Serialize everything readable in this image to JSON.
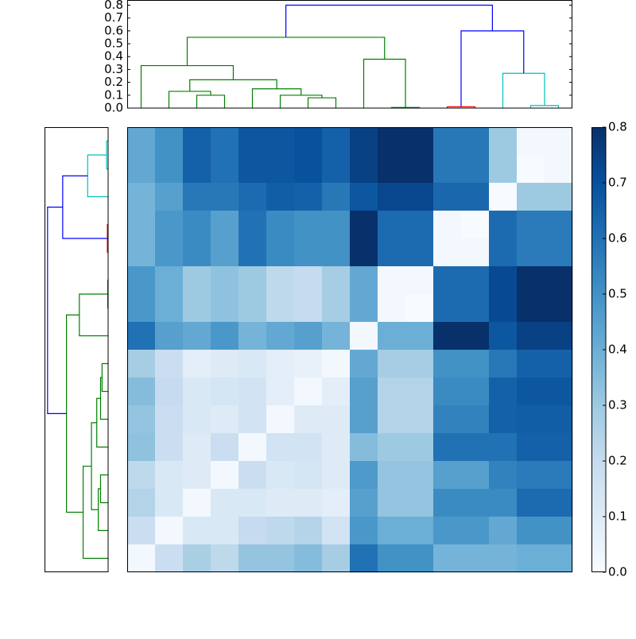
{
  "chart_data": {
    "type": "clustermap",
    "colormap": "Blues",
    "clim": [
      0,
      0.8
    ],
    "z": [
      [
        0.42,
        0.5,
        0.65,
        0.6,
        0.68,
        0.68,
        0.7,
        0.65,
        0.75,
        0.8,
        0.8,
        0.58,
        0.58,
        0.3,
        0.02,
        0.02
      ],
      [
        0.42,
        0.5,
        0.65,
        0.6,
        0.68,
        0.68,
        0.7,
        0.65,
        0.75,
        0.8,
        0.8,
        0.58,
        0.58,
        0.3,
        0.0,
        0.02
      ],
      [
        0.38,
        0.45,
        0.58,
        0.58,
        0.62,
        0.66,
        0.65,
        0.58,
        0.68,
        0.73,
        0.73,
        0.63,
        0.63,
        0.0,
        0.3,
        0.3
      ],
      [
        0.38,
        0.48,
        0.52,
        0.45,
        0.6,
        0.52,
        0.5,
        0.5,
        0.8,
        0.62,
        0.62,
        0.02,
        0.0,
        0.62,
        0.57,
        0.57
      ],
      [
        0.38,
        0.48,
        0.52,
        0.45,
        0.6,
        0.52,
        0.5,
        0.5,
        0.8,
        0.62,
        0.62,
        0.02,
        0.02,
        0.62,
        0.57,
        0.57
      ],
      [
        0.48,
        0.4,
        0.3,
        0.33,
        0.3,
        0.22,
        0.2,
        0.28,
        0.42,
        0.02,
        0.02,
        0.62,
        0.62,
        0.72,
        0.8,
        0.8
      ],
      [
        0.48,
        0.4,
        0.3,
        0.33,
        0.3,
        0.22,
        0.2,
        0.28,
        0.42,
        0.02,
        0.0,
        0.62,
        0.62,
        0.72,
        0.8,
        0.8
      ],
      [
        0.6,
        0.45,
        0.42,
        0.48,
        0.38,
        0.42,
        0.45,
        0.38,
        0.02,
        0.4,
        0.4,
        0.8,
        0.8,
        0.68,
        0.75,
        0.75
      ],
      [
        0.28,
        0.18,
        0.08,
        0.1,
        0.12,
        0.08,
        0.06,
        0.02,
        0.42,
        0.28,
        0.28,
        0.5,
        0.5,
        0.58,
        0.65,
        0.65
      ],
      [
        0.35,
        0.2,
        0.12,
        0.14,
        0.15,
        0.08,
        0.02,
        0.08,
        0.45,
        0.25,
        0.25,
        0.52,
        0.52,
        0.65,
        0.68,
        0.68
      ],
      [
        0.32,
        0.18,
        0.12,
        0.1,
        0.15,
        0.02,
        0.1,
        0.1,
        0.45,
        0.25,
        0.25,
        0.55,
        0.55,
        0.65,
        0.66,
        0.66
      ],
      [
        0.33,
        0.18,
        0.1,
        0.18,
        0.02,
        0.15,
        0.15,
        0.1,
        0.35,
        0.3,
        0.3,
        0.6,
        0.6,
        0.6,
        0.65,
        0.65
      ],
      [
        0.22,
        0.12,
        0.1,
        0.02,
        0.18,
        0.12,
        0.14,
        0.1,
        0.47,
        0.32,
        0.32,
        0.45,
        0.45,
        0.55,
        0.57,
        0.57
      ],
      [
        0.25,
        0.12,
        0.02,
        0.12,
        0.12,
        0.1,
        0.1,
        0.08,
        0.45,
        0.32,
        0.32,
        0.52,
        0.52,
        0.52,
        0.62,
        0.62
      ],
      [
        0.18,
        0.02,
        0.12,
        0.12,
        0.2,
        0.22,
        0.24,
        0.15,
        0.48,
        0.4,
        0.4,
        0.48,
        0.48,
        0.42,
        0.5,
        0.5
      ],
      [
        0.02,
        0.18,
        0.27,
        0.22,
        0.32,
        0.32,
        0.35,
        0.28,
        0.6,
        0.5,
        0.5,
        0.38,
        0.38,
        0.38,
        0.4,
        0.4
      ]
    ],
    "top_dendrogram": {
      "xlim": [
        0,
        160
      ],
      "ylim": [
        0,
        0.84
      ],
      "yticks": [
        {
          "value": 0,
          "label": "0.0"
        },
        0.1,
        0.2,
        0.3,
        0.4,
        0.5,
        0.6,
        0.7,
        0.8
      ],
      "links": [
        {
          "icoord": [
            25,
            25,
            35,
            35
          ],
          "dcoord": [
            0,
            0.1,
            0.1,
            0
          ],
          "color": "#008000"
        },
        {
          "icoord": [
            15,
            15,
            30,
            30
          ],
          "dcoord": [
            0,
            0.13,
            0.13,
            0.1
          ],
          "color": "#008000"
        },
        {
          "icoord": [
            65,
            65,
            75,
            75
          ],
          "dcoord": [
            0,
            0.08,
            0.08,
            0
          ],
          "color": "#008000"
        },
        {
          "icoord": [
            55,
            55,
            70,
            70
          ],
          "dcoord": [
            0,
            0.1,
            0.1,
            0.08
          ],
          "color": "#008000"
        },
        {
          "icoord": [
            45,
            45,
            62.5,
            62.5
          ],
          "dcoord": [
            0,
            0.15,
            0.15,
            0.1
          ],
          "color": "#008000"
        },
        {
          "icoord": [
            22.5,
            22.5,
            53.75,
            53.75
          ],
          "dcoord": [
            0.13,
            0.22,
            0.22,
            0.15
          ],
          "color": "#008000"
        },
        {
          "icoord": [
            5,
            5,
            38.125,
            38.125
          ],
          "dcoord": [
            0,
            0.33,
            0.33,
            0.22
          ],
          "color": "#008000"
        },
        {
          "icoord": [
            95,
            95,
            105,
            105
          ],
          "dcoord": [
            0,
            0.005,
            0.005,
            0
          ],
          "color": "#008000"
        },
        {
          "icoord": [
            85,
            85,
            100,
            100
          ],
          "dcoord": [
            0,
            0.38,
            0.38,
            0.005
          ],
          "color": "#008000"
        },
        {
          "icoord": [
            21.5625,
            21.5625,
            92.5,
            92.5
          ],
          "dcoord": [
            0.33,
            0.55,
            0.55,
            0.38
          ],
          "color": "#008000"
        },
        {
          "icoord": [
            115,
            115,
            125,
            125
          ],
          "dcoord": [
            0,
            0.01,
            0.01,
            0
          ],
          "color": "#ff0000"
        },
        {
          "icoord": [
            145,
            145,
            155,
            155
          ],
          "dcoord": [
            0,
            0.02,
            0.02,
            0
          ],
          "color": "#00bfbf"
        },
        {
          "icoord": [
            135,
            135,
            150,
            150
          ],
          "dcoord": [
            0,
            0.27,
            0.27,
            0.02
          ],
          "color": "#00bfbf"
        },
        {
          "icoord": [
            120,
            120,
            142.5,
            142.5
          ],
          "dcoord": [
            0.01,
            0.6,
            0.6,
            0.27
          ],
          "color": "#0000ff"
        },
        {
          "icoord": [
            57.03,
            57.03,
            131.25,
            131.25
          ],
          "dcoord": [
            0.55,
            0.8,
            0.8,
            0.6
          ],
          "color": "#0000ff"
        }
      ]
    },
    "left_dendrogram": {
      "ylim": [
        0,
        160
      ],
      "xlim": [
        0.84,
        0
      ],
      "links": [
        {
          "icoord": [
            135,
            135,
            125,
            125
          ],
          "dcoord": [
            0,
            0.1,
            0.1,
            0
          ],
          "color": "#008000"
        },
        {
          "icoord": [
            145,
            145,
            130,
            130
          ],
          "dcoord": [
            0,
            0.13,
            0.13,
            0.1
          ],
          "color": "#008000"
        },
        {
          "icoord": [
            95,
            95,
            85,
            85
          ],
          "dcoord": [
            0,
            0.08,
            0.08,
            0
          ],
          "color": "#008000"
        },
        {
          "icoord": [
            105,
            105,
            90,
            90
          ],
          "dcoord": [
            0,
            0.1,
            0.1,
            0.08
          ],
          "color": "#008000"
        },
        {
          "icoord": [
            115,
            115,
            97.5,
            97.5
          ],
          "dcoord": [
            0,
            0.15,
            0.15,
            0.1
          ],
          "color": "#008000"
        },
        {
          "icoord": [
            137.5,
            137.5,
            106.25,
            106.25
          ],
          "dcoord": [
            0.13,
            0.22,
            0.22,
            0.15
          ],
          "color": "#008000"
        },
        {
          "icoord": [
            155,
            155,
            121.875,
            121.875
          ],
          "dcoord": [
            0,
            0.33,
            0.33,
            0.22
          ],
          "color": "#008000"
        },
        {
          "icoord": [
            65,
            65,
            55,
            55
          ],
          "dcoord": [
            0,
            0.005,
            0.005,
            0
          ],
          "color": "#008000"
        },
        {
          "icoord": [
            75,
            75,
            60,
            60
          ],
          "dcoord": [
            0,
            0.38,
            0.38,
            0.005
          ],
          "color": "#008000"
        },
        {
          "icoord": [
            138.4375,
            138.4375,
            67.5,
            67.5
          ],
          "dcoord": [
            0.33,
            0.55,
            0.55,
            0.38
          ],
          "color": "#008000"
        },
        {
          "icoord": [
            45,
            45,
            35,
            35
          ],
          "dcoord": [
            0,
            0.01,
            0.01,
            0
          ],
          "color": "#ff0000"
        },
        {
          "icoord": [
            15,
            15,
            5,
            5
          ],
          "dcoord": [
            0,
            0.02,
            0.02,
            0
          ],
          "color": "#00bfbf"
        },
        {
          "icoord": [
            25,
            25,
            10,
            10
          ],
          "dcoord": [
            0,
            0.27,
            0.27,
            0.02
          ],
          "color": "#00bfbf"
        },
        {
          "icoord": [
            40,
            40,
            17.5,
            17.5
          ],
          "dcoord": [
            0.01,
            0.6,
            0.6,
            0.27
          ],
          "color": "#0000ff"
        },
        {
          "icoord": [
            102.97,
            102.97,
            28.75,
            28.75
          ],
          "dcoord": [
            0.55,
            0.8,
            0.8,
            0.6
          ],
          "color": "#0000ff"
        }
      ]
    },
    "colorbar": {
      "lim": [
        0,
        0.8
      ],
      "ticks": [
        {
          "value": 0,
          "label": "0.0"
        },
        0.1,
        0.2,
        0.3,
        0.4,
        0.5,
        0.6,
        0.7,
        0.8
      ]
    }
  }
}
